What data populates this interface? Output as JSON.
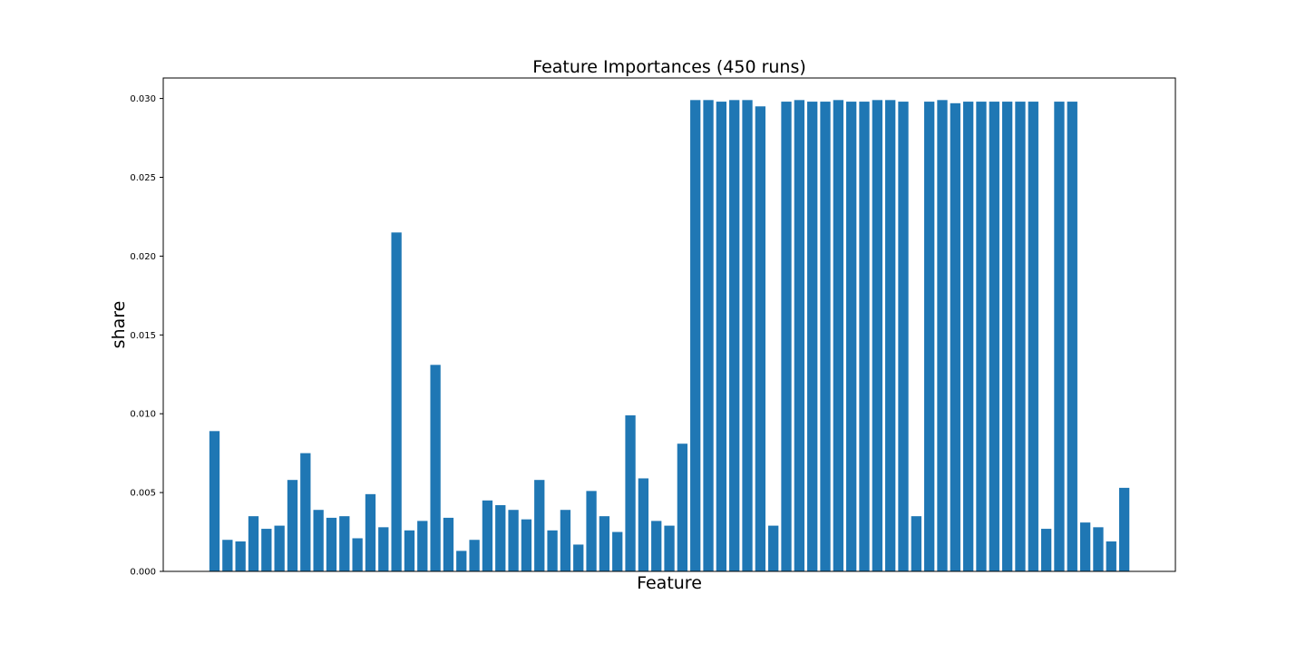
{
  "chart_data": {
    "type": "bar",
    "title": "Feature Importances (450 runs)",
    "xlabel": "Feature",
    "ylabel": "share",
    "ylim": [
      0,
      0.0313
    ],
    "yticks": [
      "0.000",
      "0.005",
      "0.010",
      "0.015",
      "0.020",
      "0.025",
      "0.030"
    ],
    "grid": false,
    "bar_color": "#1f77b4",
    "values": [
      0.0089,
      0.002,
      0.0019,
      0.0035,
      0.0027,
      0.0029,
      0.0058,
      0.0075,
      0.0039,
      0.0034,
      0.0035,
      0.0021,
      0.0049,
      0.0028,
      0.0215,
      0.0026,
      0.0032,
      0.0131,
      0.0034,
      0.0013,
      0.002,
      0.0045,
      0.0042,
      0.0039,
      0.0033,
      0.0058,
      0.0026,
      0.0039,
      0.0017,
      0.0051,
      0.0035,
      0.0025,
      0.0099,
      0.0059,
      0.0032,
      0.0029,
      0.0081,
      0.0299,
      0.0299,
      0.0298,
      0.0299,
      0.0299,
      0.0295,
      0.0029,
      0.0298,
      0.0299,
      0.0298,
      0.0298,
      0.0299,
      0.0298,
      0.0298,
      0.0299,
      0.0299,
      0.0298,
      0.0035,
      0.0298,
      0.0299,
      0.0297,
      0.0298,
      0.0298,
      0.0298,
      0.0298,
      0.0298,
      0.0298,
      0.0027,
      0.0298,
      0.0298,
      0.0031,
      0.0028,
      0.0019,
      0.0053
    ]
  }
}
